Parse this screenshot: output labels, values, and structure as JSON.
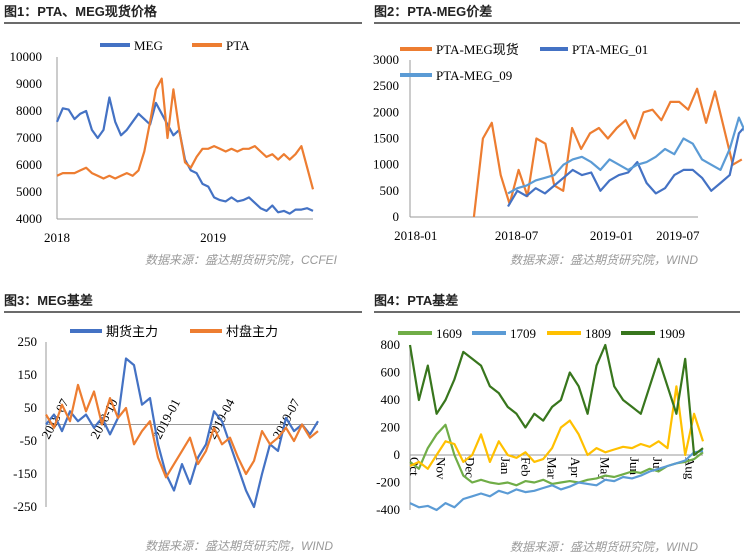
{
  "panels": [
    {
      "title": "图1：PTA、MEG现货价格",
      "source": "数据来源：盛达期货研究院，CCFEI"
    },
    {
      "title": "图2：PTA-MEG价差",
      "source": "数据来源：盛达期货研究院，WIND"
    },
    {
      "title": "图3：MEG基差",
      "source": "数据来源：盛达期货研究院，WIND"
    },
    {
      "title": "图4：PTA基差",
      "source": "数据来源：盛达期货研究院，WIND"
    }
  ],
  "chart_data": [
    {
      "type": "line",
      "title": "",
      "ylim": [
        4000,
        10000
      ],
      "yticks": [
        "10000",
        "9000",
        "8000",
        "7000",
        "6000",
        "5000",
        "4000"
      ],
      "xticks": [
        "2018",
        "2019"
      ],
      "legend_position": "top",
      "series": [
        {
          "name": "MEG",
          "color": "#4472C4",
          "values": [
            7600,
            8100,
            8050,
            7700,
            7900,
            8000,
            7300,
            7000,
            7300,
            8500,
            7600,
            7100,
            7300,
            7600,
            7900,
            7700,
            7500,
            8300,
            7900,
            7500,
            7100,
            7300,
            6200,
            5800,
            5700,
            5300,
            5200,
            4800,
            4700,
            4650,
            4800,
            4650,
            4700,
            4800,
            4600,
            4400,
            4300,
            4500,
            4250,
            4300,
            4200,
            4350,
            4350,
            4400,
            4300
          ]
        },
        {
          "name": "PTA",
          "color": "#ED7D31",
          "values": [
            5600,
            5700,
            5700,
            5700,
            5800,
            5900,
            5700,
            5600,
            5500,
            5600,
            5500,
            5600,
            5700,
            5600,
            5800,
            6500,
            7600,
            8800,
            9200,
            7000,
            8800,
            7300,
            6100,
            5900,
            6300,
            6600,
            6600,
            6700,
            6600,
            6500,
            6600,
            6500,
            6600,
            6600,
            6700,
            6500,
            6300,
            6400,
            6200,
            6400,
            6200,
            6400,
            6700,
            5900,
            5100
          ]
        }
      ]
    },
    {
      "type": "line",
      "title": "",
      "ylim": [
        0,
        3000
      ],
      "yticks": [
        "3000",
        "2500",
        "2000",
        "1500",
        "1000",
        "500",
        "0"
      ],
      "xticks": [
        "2018-01",
        "2018-07",
        "2019-01",
        "2019-07"
      ],
      "legend_position": "top",
      "series": [
        {
          "name": "PTA-MEG现货",
          "color": "#ED7D31",
          "values": [
            0,
            1500,
            1800,
            800,
            250,
            900,
            400,
            1500,
            1400,
            600,
            500,
            1700,
            1300,
            1600,
            1700,
            1500,
            1700,
            1850,
            1500,
            2000,
            2050,
            1850,
            2200,
            2200,
            2050,
            2450,
            1800,
            2400,
            1700,
            1000,
            1100
          ]
        },
        {
          "name": "PTA-MEG_01",
          "color": "#4472C4",
          "values": [
            200,
            500,
            400,
            550,
            450,
            600,
            750,
            900,
            800,
            850,
            500,
            700,
            800,
            850,
            1050,
            650,
            450,
            550,
            800,
            900,
            900,
            750,
            500,
            650,
            800,
            1600,
            1800,
            600,
            700,
            700
          ]
        },
        {
          "name": "PTA-MEG_09",
          "color": "#5B9BD5",
          "values": [
            450,
            550,
            600,
            700,
            750,
            800,
            1000,
            1100,
            1150,
            1050,
            900,
            1100,
            1000,
            900,
            1000,
            1050,
            1150,
            1300,
            1200,
            1500,
            1400,
            1100,
            1000,
            900,
            1300,
            1900,
            1500,
            1000,
            950,
            850
          ]
        }
      ]
    },
    {
      "type": "line",
      "title": "",
      "ylim": [
        -250,
        250
      ],
      "yticks": [
        "250",
        "150",
        "50",
        "-50",
        "-150",
        "-250"
      ],
      "xticks": [
        "2018-07",
        "2018-10",
        "2019-01",
        "2019-04",
        "2019-07"
      ],
      "legend_position": "top",
      "series": [
        {
          "name": "期货主力",
          "color": "#4472C4",
          "values": [
            0,
            30,
            -20,
            40,
            10,
            30,
            -10,
            20,
            -30,
            20,
            200,
            180,
            60,
            80,
            -60,
            -150,
            -200,
            -120,
            -180,
            -100,
            -60,
            40,
            10,
            -60,
            -130,
            -200,
            -250,
            -150,
            -60,
            -80,
            20,
            -20,
            0,
            -30,
            10
          ]
        },
        {
          "name": "村盘主力",
          "color": "#ED7D31",
          "values": [
            30,
            -10,
            60,
            10,
            120,
            40,
            100,
            0,
            80,
            20,
            50,
            -60,
            -20,
            10,
            -100,
            -160,
            -120,
            -80,
            -40,
            -120,
            -80,
            -10,
            -60,
            -40,
            -100,
            -150,
            -110,
            -20,
            -60,
            -40,
            -10,
            -50,
            0,
            -40,
            -20
          ]
        }
      ]
    },
    {
      "type": "line",
      "title": "",
      "ylim": [
        -400,
        800
      ],
      "yticks": [
        "800",
        "600",
        "400",
        "200",
        "0",
        "-200",
        "-400"
      ],
      "xticks": [
        "Oct",
        "Nov",
        "Dec",
        "Jan",
        "Feb",
        "Mar",
        "Apr",
        "May",
        "Jun",
        "Jul",
        "Aug"
      ],
      "legend_position": "top",
      "series": [
        {
          "name": "1609",
          "color": "#70AD47",
          "values": [
            -50,
            -100,
            50,
            150,
            220,
            0,
            -150,
            -200,
            -180,
            -200,
            -210,
            -200,
            -220,
            -190,
            -200,
            -180,
            -210,
            -200,
            -190,
            -200,
            -180,
            -170,
            -150,
            -160,
            -140,
            -120,
            -130,
            -100,
            -120,
            -80,
            -60,
            -50,
            -30,
            20
          ]
        },
        {
          "name": "1709",
          "color": "#5B9BD5",
          "values": [
            -350,
            -380,
            -370,
            -400,
            -350,
            -380,
            -320,
            -300,
            -280,
            -300,
            -260,
            -280,
            -250,
            -270,
            -260,
            -240,
            -220,
            -250,
            -230,
            -200,
            -210,
            -220,
            -180,
            -190,
            -160,
            -170,
            -150,
            -120,
            -100,
            -80,
            -60,
            -40,
            20,
            30
          ]
        },
        {
          "name": "1809",
          "color": "#FFC000",
          "values": [
            -80,
            -50,
            -100,
            0,
            100,
            80,
            -50,
            0,
            150,
            -50,
            100,
            0,
            -20,
            20,
            -50,
            -30,
            50,
            200,
            250,
            150,
            0,
            50,
            20,
            40,
            60,
            50,
            80,
            60,
            100,
            50,
            500,
            0,
            300,
            100
          ]
        },
        {
          "name": "1909",
          "color": "#38761D",
          "values": [
            800,
            400,
            650,
            300,
            400,
            550,
            750,
            700,
            650,
            500,
            450,
            350,
            300,
            200,
            300,
            250,
            350,
            400,
            600,
            500,
            300,
            650,
            800,
            500,
            400,
            350,
            300,
            500,
            700,
            500,
            300,
            700,
            0,
            50
          ]
        }
      ]
    }
  ]
}
